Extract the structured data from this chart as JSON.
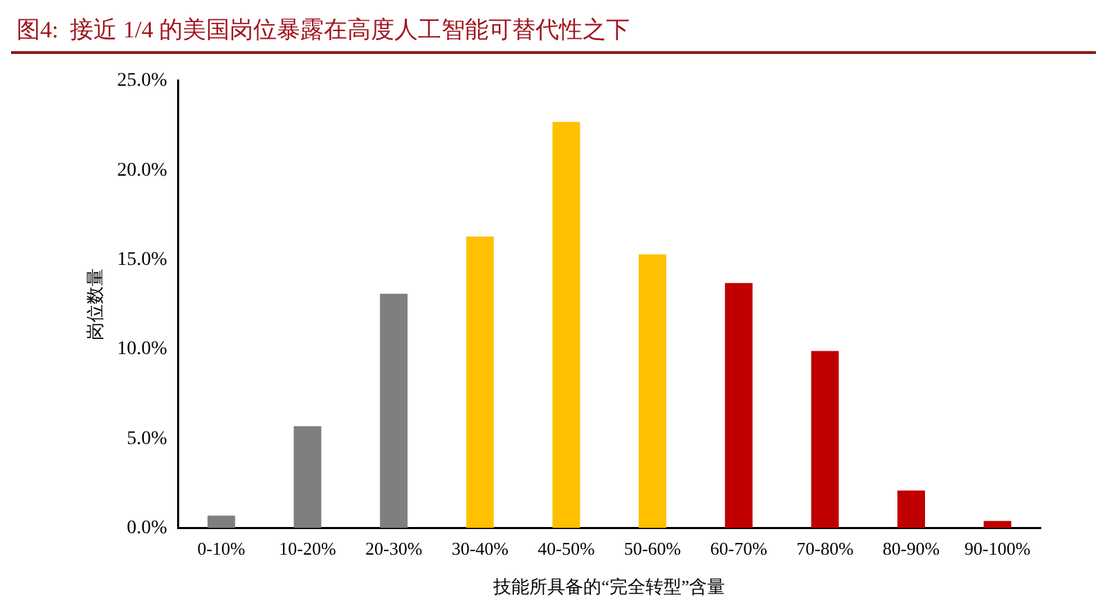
{
  "chart_data": {
    "type": "bar",
    "title": "图4:  接近 1/4 的美国岗位暴露在高度人工智能可替代性之下",
    "xlabel": "技能所具备的“完全转型”含量",
    "ylabel": "岗位数量",
    "categories": [
      "0-10%",
      "10-20%",
      "20-30%",
      "30-40%",
      "40-50%",
      "50-60%",
      "60-70%",
      "70-80%",
      "80-90%",
      "90-100%"
    ],
    "values": [
      0.7,
      5.7,
      13.1,
      16.3,
      22.7,
      15.3,
      13.7,
      9.9,
      2.1,
      0.4
    ],
    "colors": [
      "#7f7f7f",
      "#7f7f7f",
      "#7f7f7f",
      "#ffc000",
      "#ffc000",
      "#ffc000",
      "#c00000",
      "#c00000",
      "#c00000",
      "#c00000"
    ],
    "ylim": [
      0,
      25
    ],
    "yticks": [
      {
        "value": 0,
        "label": "0.0%"
      },
      {
        "value": 5,
        "label": "5.0%"
      },
      {
        "value": 10,
        "label": "10.0%"
      },
      {
        "value": 15,
        "label": "15.0%"
      },
      {
        "value": 20,
        "label": "20.0%"
      },
      {
        "value": 25,
        "label": "25.0%"
      }
    ],
    "grid": false,
    "legend": false
  }
}
